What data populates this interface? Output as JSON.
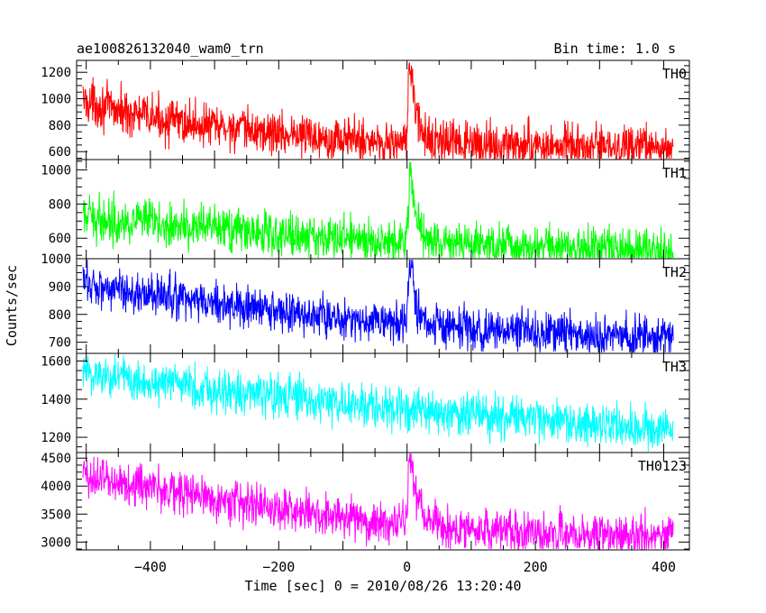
{
  "chart_data": {
    "type": "line",
    "title": "ae100826132040_wam0_trn",
    "bin_time_label": "Bin time: 1.0 s",
    "xlabel": "Time [sec] 0 = 2010/08/26 13:20:40",
    "ylabel": "Counts/sec",
    "xlim": [
      -515,
      440
    ],
    "x_ticks": [
      -400,
      -200,
      0,
      200,
      400
    ],
    "grid": false,
    "panels": [
      {
        "name": "TH0",
        "color": "#ff0000",
        "ylim": [
          540,
          1290
        ],
        "y_ticks": [
          600,
          800,
          1000,
          1200
        ],
        "points": [
          {
            "x": -505,
            "y": 990
          },
          {
            "x": -450,
            "y": 910
          },
          {
            "x": -400,
            "y": 860
          },
          {
            "x": -350,
            "y": 820
          },
          {
            "x": -300,
            "y": 790
          },
          {
            "x": -250,
            "y": 760
          },
          {
            "x": -200,
            "y": 740
          },
          {
            "x": -150,
            "y": 720
          },
          {
            "x": -100,
            "y": 700
          },
          {
            "x": -50,
            "y": 680
          },
          {
            "x": -5,
            "y": 660
          },
          {
            "x": 0,
            "y": 700
          },
          {
            "x": 3,
            "y": 1270
          },
          {
            "x": 8,
            "y": 1150
          },
          {
            "x": 15,
            "y": 850
          },
          {
            "x": 25,
            "y": 720
          },
          {
            "x": 50,
            "y": 670
          },
          {
            "x": 100,
            "y": 650
          },
          {
            "x": 200,
            "y": 640
          },
          {
            "x": 300,
            "y": 630
          },
          {
            "x": 415,
            "y": 620
          }
        ]
      },
      {
        "name": "TH1",
        "color": "#00ff00",
        "ylim": [
          480,
          1060
        ],
        "y_ticks": [
          600,
          800,
          1000
        ],
        "points": [
          {
            "x": -505,
            "y": 720
          },
          {
            "x": -450,
            "y": 705
          },
          {
            "x": -400,
            "y": 690
          },
          {
            "x": -350,
            "y": 670
          },
          {
            "x": -300,
            "y": 655
          },
          {
            "x": -250,
            "y": 640
          },
          {
            "x": -200,
            "y": 625
          },
          {
            "x": -150,
            "y": 610
          },
          {
            "x": -100,
            "y": 600
          },
          {
            "x": -50,
            "y": 590
          },
          {
            "x": -5,
            "y": 580
          },
          {
            "x": 0,
            "y": 600
          },
          {
            "x": 4,
            "y": 1040
          },
          {
            "x": 9,
            "y": 900
          },
          {
            "x": 15,
            "y": 700
          },
          {
            "x": 30,
            "y": 600
          },
          {
            "x": 60,
            "y": 570
          },
          {
            "x": 150,
            "y": 555
          },
          {
            "x": 250,
            "y": 545
          },
          {
            "x": 415,
            "y": 530
          }
        ]
      },
      {
        "name": "TH2",
        "color": "#0000ff",
        "ylim": [
          660,
          1000
        ],
        "y_ticks": [
          700,
          800,
          900,
          1000
        ],
        "points": [
          {
            "x": -505,
            "y": 915
          },
          {
            "x": -450,
            "y": 890
          },
          {
            "x": -400,
            "y": 870
          },
          {
            "x": -350,
            "y": 855
          },
          {
            "x": -300,
            "y": 840
          },
          {
            "x": -250,
            "y": 825
          },
          {
            "x": -200,
            "y": 810
          },
          {
            "x": -150,
            "y": 795
          },
          {
            "x": -100,
            "y": 785
          },
          {
            "x": -50,
            "y": 775
          },
          {
            "x": -5,
            "y": 765
          },
          {
            "x": 0,
            "y": 790
          },
          {
            "x": 4,
            "y": 990
          },
          {
            "x": 9,
            "y": 930
          },
          {
            "x": 15,
            "y": 820
          },
          {
            "x": 40,
            "y": 760
          },
          {
            "x": 100,
            "y": 745
          },
          {
            "x": 200,
            "y": 735
          },
          {
            "x": 300,
            "y": 725
          },
          {
            "x": 415,
            "y": 715
          }
        ]
      },
      {
        "name": "TH3",
        "color": "#00ffff",
        "ylim": [
          1120,
          1640
        ],
        "y_ticks": [
          1200,
          1400,
          1600
        ],
        "points": [
          {
            "x": -505,
            "y": 1540
          },
          {
            "x": -450,
            "y": 1515
          },
          {
            "x": -400,
            "y": 1495
          },
          {
            "x": -350,
            "y": 1475
          },
          {
            "x": -300,
            "y": 1450
          },
          {
            "x": -250,
            "y": 1430
          },
          {
            "x": -200,
            "y": 1410
          },
          {
            "x": -150,
            "y": 1390
          },
          {
            "x": -100,
            "y": 1375
          },
          {
            "x": -50,
            "y": 1355
          },
          {
            "x": 0,
            "y": 1340
          },
          {
            "x": 50,
            "y": 1325
          },
          {
            "x": 100,
            "y": 1310
          },
          {
            "x": 150,
            "y": 1300
          },
          {
            "x": 200,
            "y": 1290
          },
          {
            "x": 250,
            "y": 1280
          },
          {
            "x": 300,
            "y": 1265
          },
          {
            "x": 350,
            "y": 1255
          },
          {
            "x": 415,
            "y": 1245
          }
        ]
      },
      {
        "name": "TH0123",
        "color": "#ff00ff",
        "ylim": [
          2860,
          4600
        ],
        "y_ticks": [
          3000,
          3500,
          4000,
          4500
        ],
        "points": [
          {
            "x": -505,
            "y": 4200
          },
          {
            "x": -450,
            "y": 4080
          },
          {
            "x": -400,
            "y": 3980
          },
          {
            "x": -350,
            "y": 3880
          },
          {
            "x": -300,
            "y": 3780
          },
          {
            "x": -250,
            "y": 3690
          },
          {
            "x": -200,
            "y": 3600
          },
          {
            "x": -150,
            "y": 3520
          },
          {
            "x": -100,
            "y": 3450
          },
          {
            "x": -50,
            "y": 3380
          },
          {
            "x": -5,
            "y": 3320
          },
          {
            "x": 0,
            "y": 3380
          },
          {
            "x": 3,
            "y": 4580
          },
          {
            "x": 8,
            "y": 4300
          },
          {
            "x": 15,
            "y": 3700
          },
          {
            "x": 30,
            "y": 3400
          },
          {
            "x": 60,
            "y": 3260
          },
          {
            "x": 100,
            "y": 3220
          },
          {
            "x": 200,
            "y": 3170
          },
          {
            "x": 300,
            "y": 3130
          },
          {
            "x": 415,
            "y": 3100
          }
        ]
      }
    ]
  }
}
